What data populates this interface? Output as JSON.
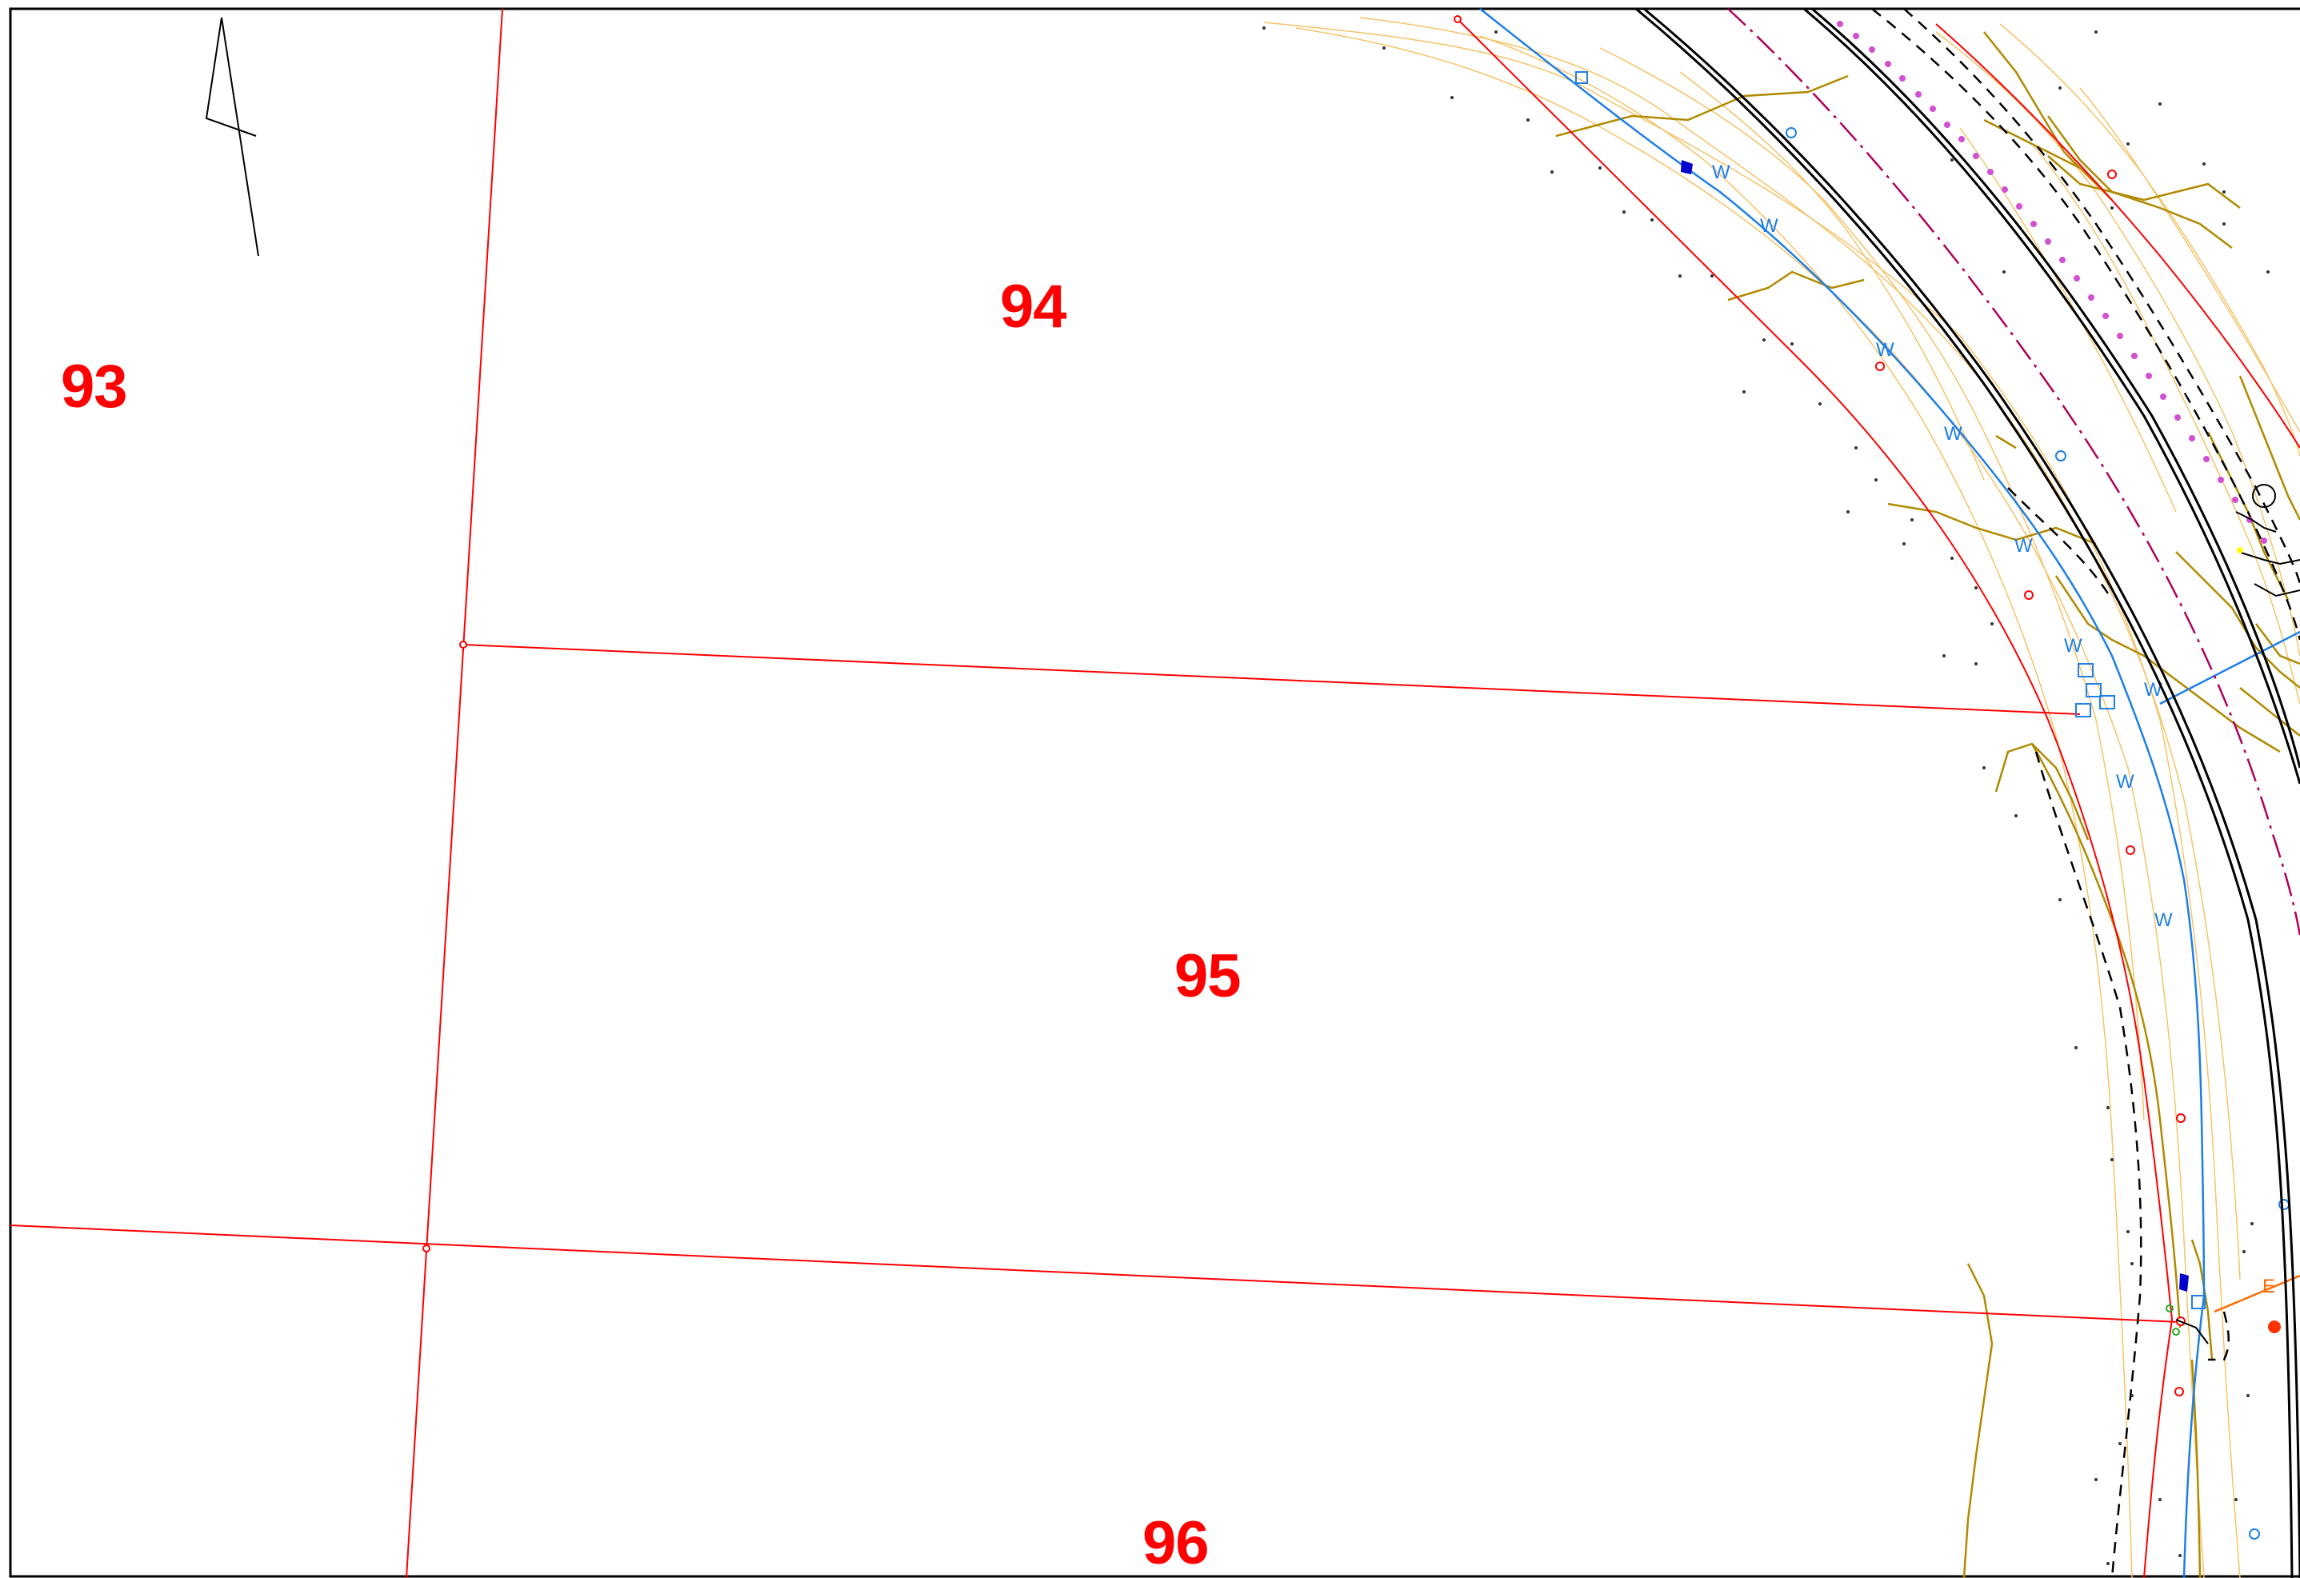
{
  "lots": {
    "lot_93": "93",
    "lot_94": "94",
    "lot_95": "95",
    "lot_96": "96"
  },
  "utility_codes": {
    "water_line": "W",
    "electric_line": "E"
  },
  "colors": {
    "lot_line": "#ff0000",
    "lot_label": "#ff0000",
    "water_line": "#1e7fe6",
    "electric_line": "#ff6a00",
    "contour_major": "#b08a00",
    "contour_minor": "#f5c36a",
    "road_edge": "#000000",
    "centerline": "#b0005a",
    "frame": "#000000"
  },
  "icons": {
    "north_arrow": "north-arrow-icon",
    "fire_hydrant": "fire-hydrant-icon",
    "water_valve": "water-valve-icon",
    "survey_monument": "survey-monument-icon"
  }
}
